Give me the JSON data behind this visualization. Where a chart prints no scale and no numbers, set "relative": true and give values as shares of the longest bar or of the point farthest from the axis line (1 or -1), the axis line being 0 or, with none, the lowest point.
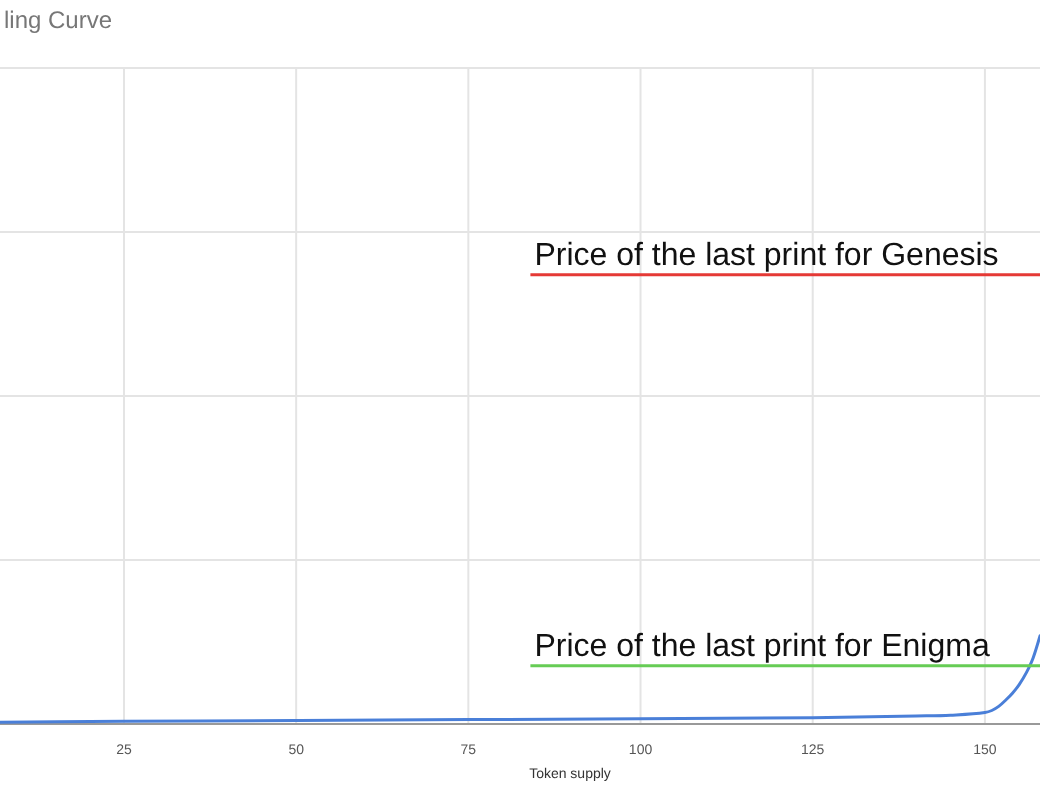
{
  "chart_data": {
    "type": "line",
    "title": "ling Curve",
    "xlabel": "Token supply",
    "relative": true,
    "x": [
      7,
      25,
      50,
      75,
      100,
      125,
      140,
      145,
      150,
      152,
      153,
      154,
      155,
      156,
      157,
      158
    ],
    "series": [
      {
        "color": "#4a7fd8",
        "values": [
          0.02,
          0.03,
          0.04,
          0.05,
          0.06,
          0.07,
          0.09,
          0.1,
          0.13,
          0.2,
          0.27,
          0.35,
          0.45,
          0.58,
          0.75,
          1
        ]
      }
    ],
    "xlim": [
      7,
      158
    ],
    "xticks": [
      25,
      50,
      75,
      100,
      125,
      150
    ],
    "grid": true,
    "ref_lines": [
      {
        "axis": "y",
        "value": 5.1,
        "label": "Price of the last print for Genesis",
        "color": "#e53935"
      },
      {
        "axis": "y",
        "value": 0.66,
        "label": "Price of the last print for Enigma",
        "color": "#66cc55"
      }
    ]
  }
}
